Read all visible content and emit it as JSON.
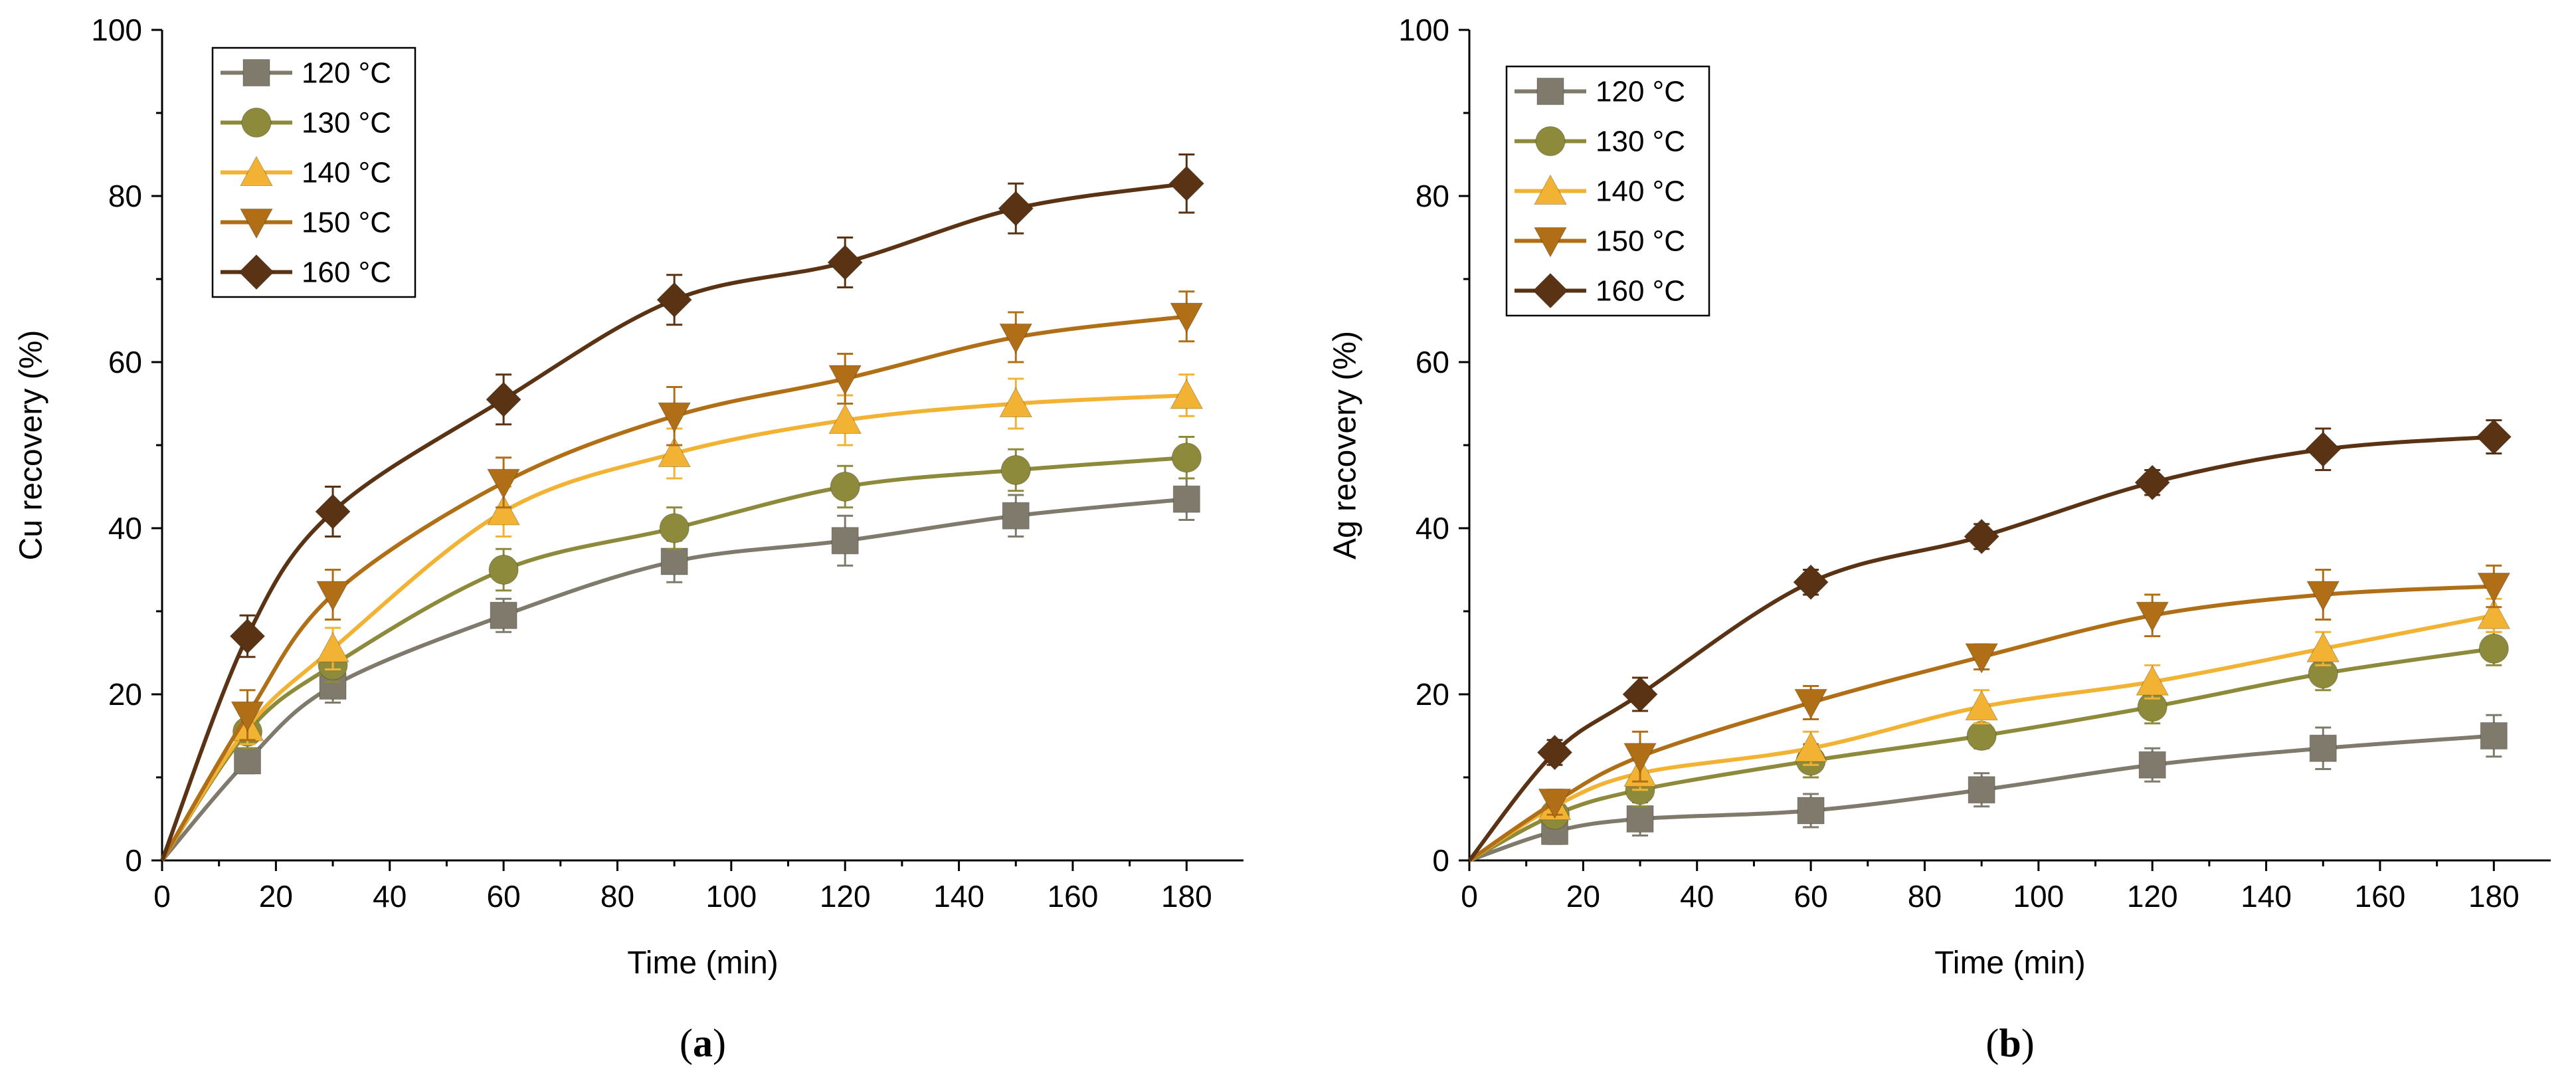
{
  "chart_data": [
    {
      "type": "line",
      "panel_label_letter": "a",
      "xlabel": "Time (min)",
      "ylabel": "Cu recovery (%)",
      "xlim": [
        0,
        190
      ],
      "ylim": [
        0,
        100
      ],
      "xticks": [
        0,
        20,
        40,
        60,
        80,
        100,
        120,
        140,
        160,
        180
      ],
      "yticks": [
        0,
        20,
        40,
        60,
        80,
        100
      ],
      "x": [
        0,
        15,
        30,
        60,
        90,
        120,
        150,
        180
      ],
      "legend_position": "top-left",
      "series": [
        {
          "name": "120 °C",
          "marker": "square",
          "color": "#7f7a6c",
          "values": [
            0,
            12,
            21,
            29.5,
            36,
            38.5,
            41.5,
            43.5
          ],
          "errors": [
            0,
            1.5,
            2,
            2,
            2.5,
            3,
            2.5,
            2.5
          ]
        },
        {
          "name": "130 °C",
          "marker": "circle",
          "color": "#8e8a3b",
          "values": [
            0,
            15.5,
            23.5,
            35,
            40,
            45,
            47,
            48.5
          ],
          "errors": [
            0,
            2,
            2,
            2.5,
            2.5,
            2.5,
            2.5,
            2.5
          ]
        },
        {
          "name": "140 °C",
          "marker": "triangle-up",
          "color": "#f2b233",
          "values": [
            0,
            16,
            25.5,
            42,
            49,
            53,
            55,
            56
          ],
          "errors": [
            0,
            2,
            2.5,
            3,
            3,
            3,
            3,
            2.5
          ]
        },
        {
          "name": "150 °C",
          "marker": "triangle-down",
          "color": "#b06f17",
          "values": [
            0,
            17.5,
            32,
            45.5,
            53.5,
            58,
            63,
            65.5
          ],
          "errors": [
            0,
            3,
            3,
            3,
            3.5,
            3,
            3,
            3
          ]
        },
        {
          "name": "160 °C",
          "marker": "diamond",
          "color": "#5a3314",
          "values": [
            0,
            27,
            42,
            55.5,
            67.5,
            72,
            78.5,
            81.5
          ],
          "errors": [
            0,
            2.5,
            3,
            3,
            3,
            3,
            3,
            3.5
          ]
        }
      ]
    },
    {
      "type": "line",
      "panel_label_letter": "b",
      "xlabel": "Time (min)",
      "ylabel": "Ag recovery (%)",
      "xlim": [
        0,
        190
      ],
      "ylim": [
        0,
        100
      ],
      "xticks": [
        0,
        20,
        40,
        60,
        80,
        100,
        120,
        140,
        160,
        180
      ],
      "yticks": [
        0,
        20,
        40,
        60,
        80,
        100
      ],
      "x": [
        0,
        15,
        30,
        60,
        90,
        120,
        150,
        180
      ],
      "legend_position": "top-left",
      "series": [
        {
          "name": "120 °C",
          "marker": "square",
          "color": "#7f7a6c",
          "values": [
            0,
            3.5,
            5,
            6,
            8.5,
            11.5,
            13.5,
            15
          ],
          "errors": [
            0,
            1.5,
            2,
            2,
            2,
            2,
            2.5,
            2.5
          ]
        },
        {
          "name": "130 °C",
          "marker": "circle",
          "color": "#8e8a3b",
          "values": [
            0,
            5.5,
            8.5,
            12,
            15,
            18.5,
            22.5,
            25.5
          ],
          "errors": [
            0,
            1.5,
            2,
            2,
            1.5,
            2,
            2,
            2
          ]
        },
        {
          "name": "140 °C",
          "marker": "triangle-up",
          "color": "#f2b233",
          "values": [
            0,
            6.5,
            10.5,
            13.5,
            18.5,
            21.5,
            25.5,
            29.5
          ],
          "errors": [
            0,
            1.5,
            2,
            2,
            2,
            2,
            2,
            2
          ]
        },
        {
          "name": "150 °C",
          "marker": "triangle-down",
          "color": "#b06f17",
          "values": [
            0,
            7,
            12.5,
            19,
            24.5,
            29.5,
            32,
            33
          ],
          "errors": [
            0,
            1.5,
            3,
            2,
            1.5,
            2.5,
            3,
            2.5
          ]
        },
        {
          "name": "160 °C",
          "marker": "diamond",
          "color": "#5a3314",
          "values": [
            0,
            13,
            20,
            33.5,
            39,
            45.5,
            49.5,
            51
          ],
          "errors": [
            0,
            1.5,
            2,
            1.5,
            1.5,
            1.5,
            2.5,
            2
          ]
        }
      ]
    }
  ]
}
